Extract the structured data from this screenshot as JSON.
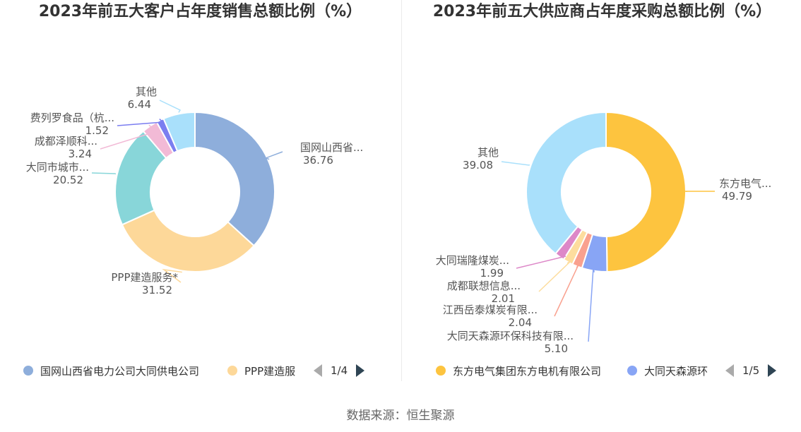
{
  "footer": "数据来源：恒生聚源",
  "chart_data": [
    {
      "type": "pie",
      "title": "2023年前五大客户占年度销售总额比例（%）",
      "slices": [
        {
          "label": "国网山西省...",
          "value": 36.76,
          "value_text": "36.76",
          "color": "#8eaedb"
        },
        {
          "label": "PPP建造服务*",
          "value": 31.52,
          "value_text": "31.52",
          "color": "#fdd899"
        },
        {
          "label": "大同市城市...",
          "value": 20.52,
          "value_text": "20.52",
          "color": "#88d6d9"
        },
        {
          "label": "成都泽顺科...",
          "value": 3.24,
          "value_text": "3.24",
          "color": "#f2bad6"
        },
        {
          "label": "费列罗食品（杭...",
          "value": 1.52,
          "value_text": "1.52",
          "color": "#7b7ef0"
        },
        {
          "label": "其他",
          "value": 6.44,
          "value_text": "6.44",
          "color": "#a9e0fb"
        }
      ],
      "legend": {
        "items": [
          {
            "label": "国网山西省电力公司大同供电公司",
            "color": "#8eaedb"
          },
          {
            "label": "PPP建造服",
            "color": "#fdd899"
          }
        ],
        "page": "1/4"
      }
    },
    {
      "type": "pie",
      "title": "2023年前五大供应商占年度采购总额比例（%）",
      "slices": [
        {
          "label": "东方电气...",
          "value": 49.79,
          "value_text": "49.79",
          "color": "#fdc43f"
        },
        {
          "label": "大同天森源环保科技有限...",
          "value": 5.1,
          "value_text": "5.10",
          "color": "#88a5f5"
        },
        {
          "label": "江西岳泰煤炭有限...",
          "value": 2.04,
          "value_text": "2.04",
          "color": "#f9a18f"
        },
        {
          "label": "成都联想信息...",
          "value": 2.01,
          "value_text": "2.01",
          "color": "#fddd9e"
        },
        {
          "label": "大同瑞隆煤炭...",
          "value": 1.99,
          "value_text": "1.99",
          "color": "#dd88c8"
        },
        {
          "label": "其他",
          "value": 39.08,
          "value_text": "39.08",
          "color": "#a9e0fb"
        }
      ],
      "legend": {
        "items": [
          {
            "label": "东方电气集团东方电机有限公司",
            "color": "#fdc43f"
          },
          {
            "label": "大同天森源环",
            "color": "#88a5f5"
          }
        ],
        "page": "1/5"
      }
    }
  ]
}
